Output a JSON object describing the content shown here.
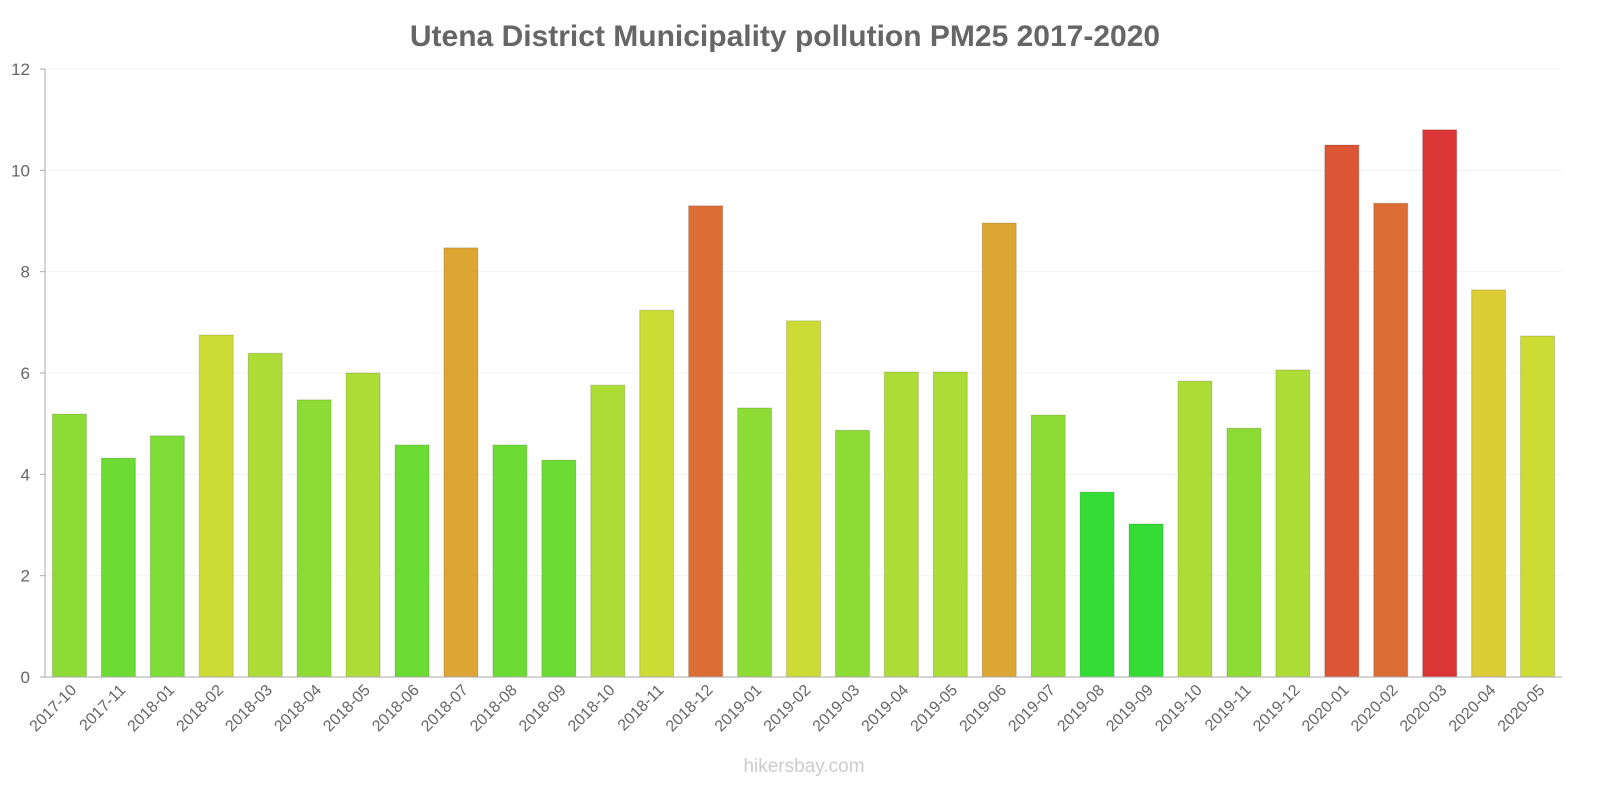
{
  "chart_data": {
    "type": "bar",
    "title": "Utena District Municipality pollution PM25 2017-2020",
    "xlabel": "",
    "ylabel": "",
    "ylim": [
      0,
      12
    ],
    "yticks": [
      "0",
      "2",
      "4",
      "6",
      "8",
      "10",
      "12"
    ],
    "grid": true,
    "categories": [
      "2017-10",
      "2017-11",
      "2018-01",
      "2018-02",
      "2018-03",
      "2018-04",
      "2018-05",
      "2018-06",
      "2018-07",
      "2018-08",
      "2018-09",
      "2018-10",
      "2018-11",
      "2018-12",
      "2019-01",
      "2019-02",
      "2019-03",
      "2019-04",
      "2019-05",
      "2019-06",
      "2019-07",
      "2019-08",
      "2019-09",
      "2019-10",
      "2019-11",
      "2019-12",
      "2020-01",
      "2020-02",
      "2020-03",
      "2020-04",
      "2020-05"
    ],
    "values": [
      5.19,
      4.32,
      4.76,
      6.75,
      6.39,
      5.47,
      6.0,
      4.58,
      8.47,
      4.58,
      4.28,
      5.76,
      7.24,
      9.3,
      5.31,
      7.03,
      4.87,
      6.02,
      6.02,
      8.96,
      5.17,
      3.65,
      3.02,
      5.84,
      4.91,
      6.06,
      10.5,
      9.35,
      10.8,
      7.64,
      6.73
    ],
    "colors": [
      "#8ddc35",
      "#6cdc35",
      "#7ddc35",
      "#cddc35",
      "#acdc35",
      "#8ddc35",
      "#acdc35",
      "#6cdc35",
      "#dca635",
      "#6cdc35",
      "#6cdc35",
      "#acdc35",
      "#cddc35",
      "#dc6e35",
      "#8ddc35",
      "#cddc35",
      "#8ddc35",
      "#acdc35",
      "#acdc35",
      "#dca635",
      "#8ddc35",
      "#35dc35",
      "#35dc35",
      "#acdc35",
      "#8ddc35",
      "#acdc35",
      "#dc5535",
      "#dc6e35",
      "#dc3535",
      "#dccc35",
      "#cddc35"
    ]
  },
  "credit": "hikersbay.com"
}
